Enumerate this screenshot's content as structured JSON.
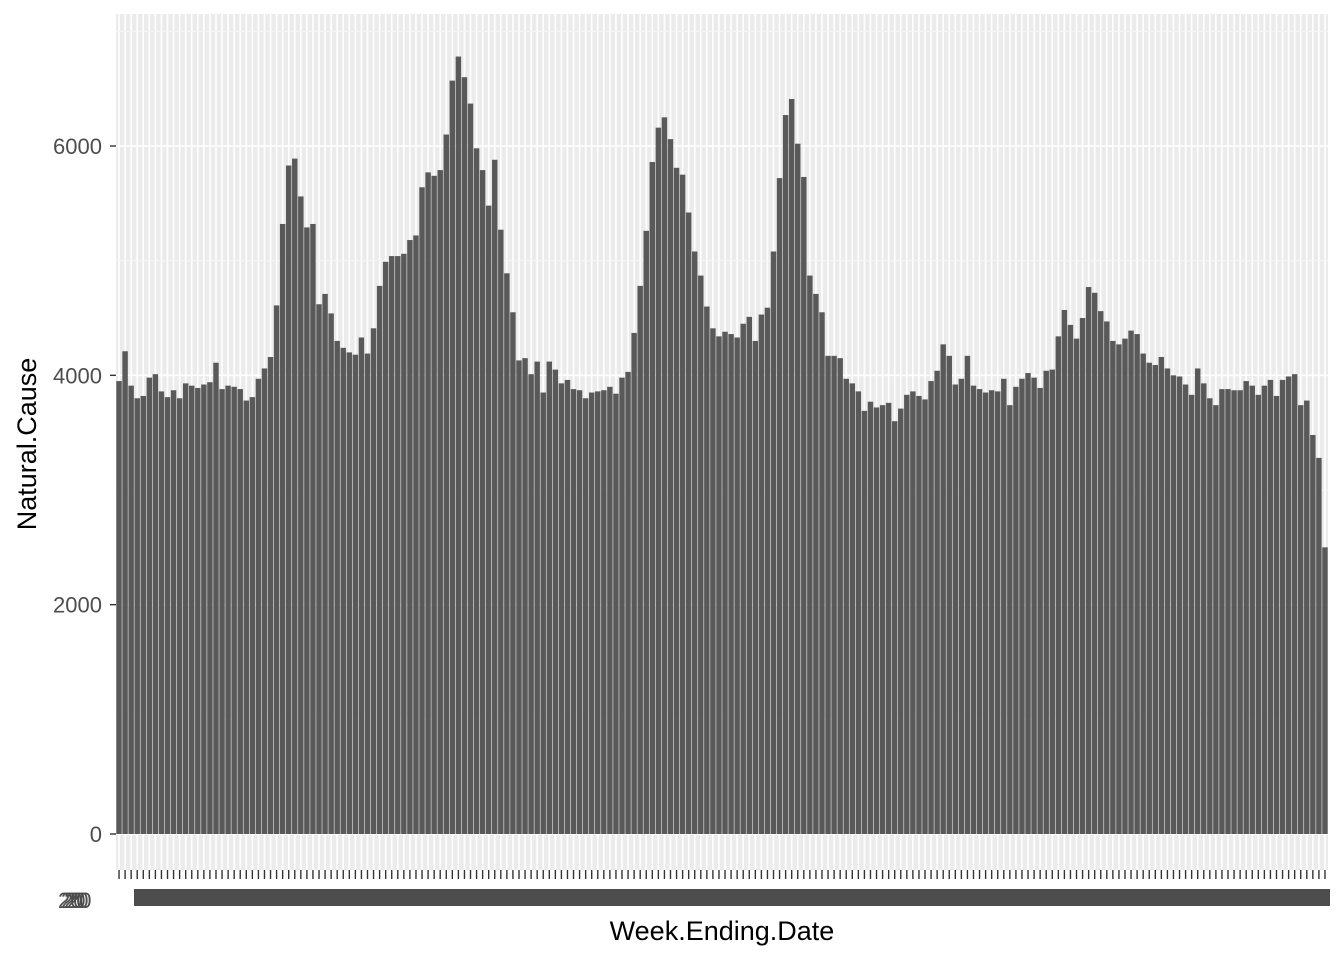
{
  "chart_data": {
    "type": "bar",
    "title": "",
    "xlabel": "Week.Ending.Date",
    "ylabel": "Natural.Cause",
    "ylim": [
      0,
      7050
    ],
    "yticks": [
      0,
      2000,
      4000,
      6000
    ],
    "ytick_labels": [
      "0",
      "2000",
      "4000",
      "6000"
    ],
    "xtick_label_prefix": "20",
    "grid": true,
    "legend": "none",
    "bar_color": "#595959",
    "panel_color": "#ebebeb",
    "values": [
      3950,
      4210,
      3910,
      3800,
      3820,
      3980,
      4010,
      3860,
      3810,
      3870,
      3800,
      3930,
      3910,
      3890,
      3920,
      3940,
      4110,
      3880,
      3910,
      3900,
      3880,
      3780,
      3810,
      3970,
      4060,
      4160,
      4610,
      5320,
      5830,
      5890,
      5560,
      5290,
      5320,
      4620,
      4710,
      4540,
      4300,
      4240,
      4200,
      4180,
      4330,
      4190,
      4410,
      4780,
      4990,
      5040,
      5040,
      5060,
      5180,
      5220,
      5640,
      5770,
      5740,
      5790,
      6100,
      6570,
      6780,
      6600,
      6370,
      5980,
      5790,
      5480,
      5880,
      5270,
      4890,
      4550,
      4130,
      4150,
      4010,
      4120,
      3850,
      4120,
      4050,
      3930,
      3960,
      3880,
      3870,
      3800,
      3850,
      3860,
      3870,
      3900,
      3840,
      3980,
      4030,
      4370,
      4780,
      5260,
      5860,
      6160,
      6250,
      6060,
      5810,
      5750,
      5420,
      5080,
      4870,
      4600,
      4410,
      4340,
      4380,
      4360,
      4330,
      4450,
      4510,
      4300,
      4530,
      4590,
      5080,
      5720,
      6270,
      6410,
      6020,
      5730,
      4870,
      4710,
      4550,
      4170,
      4170,
      4150,
      3970,
      3930,
      3860,
      3690,
      3770,
      3720,
      3740,
      3760,
      3600,
      3710,
      3830,
      3860,
      3820,
      3790,
      3950,
      4040,
      4270,
      4170,
      3920,
      3970,
      4170,
      3910,
      3880,
      3850,
      3870,
      3860,
      3970,
      3740,
      3900,
      3970,
      4020,
      3980,
      3890,
      4040,
      4050,
      4340,
      4570,
      4440,
      4320,
      4500,
      4770,
      4720,
      4560,
      4470,
      4300,
      4270,
      4320,
      4390,
      4360,
      4190,
      4110,
      4090,
      4160,
      4060,
      4000,
      3990,
      3920,
      3830,
      4060,
      3930,
      3800,
      3740,
      3880,
      3880,
      3870,
      3870,
      3950,
      3910,
      3830,
      3910,
      3960,
      3820,
      3960,
      3990,
      4010,
      3740,
      3780,
      3480,
      3280,
      2500
    ]
  }
}
